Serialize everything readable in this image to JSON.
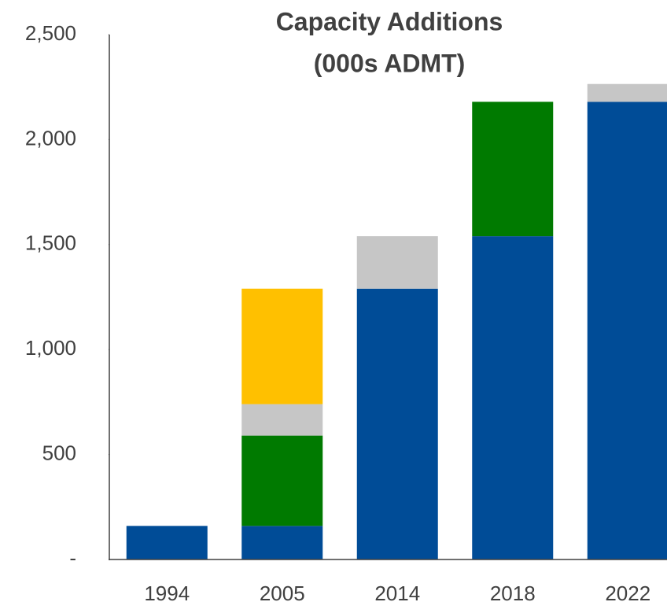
{
  "chart_data": {
    "type": "stacked-bar",
    "title": [
      "Capacity Additions",
      "(000s ADMT)"
    ],
    "categories": [
      "1994",
      "2005",
      "2014",
      "2018",
      "2022"
    ],
    "series": [
      {
        "color": "#004C97",
        "values": [
          160,
          160,
          1290,
          1540,
          2180
        ]
      },
      {
        "color": "#007A00",
        "values": [
          null,
          430,
          null,
          640,
          null
        ]
      },
      {
        "color": "#C6C6C6",
        "values": [
          null,
          150,
          250,
          null,
          85
        ]
      },
      {
        "color": "#FFC000",
        "values": [
          null,
          550,
          null,
          null,
          null
        ]
      }
    ],
    "ylim": [
      0,
      2500
    ],
    "yticks": [
      {
        "value": 0,
        "label": "-"
      },
      500,
      {
        "value": 1000,
        "label": "1,000"
      },
      {
        "value": 1500,
        "label": "1,500"
      },
      {
        "value": 2000,
        "label": "2,000"
      },
      {
        "value": 2500,
        "label": "2,500"
      }
    ]
  }
}
